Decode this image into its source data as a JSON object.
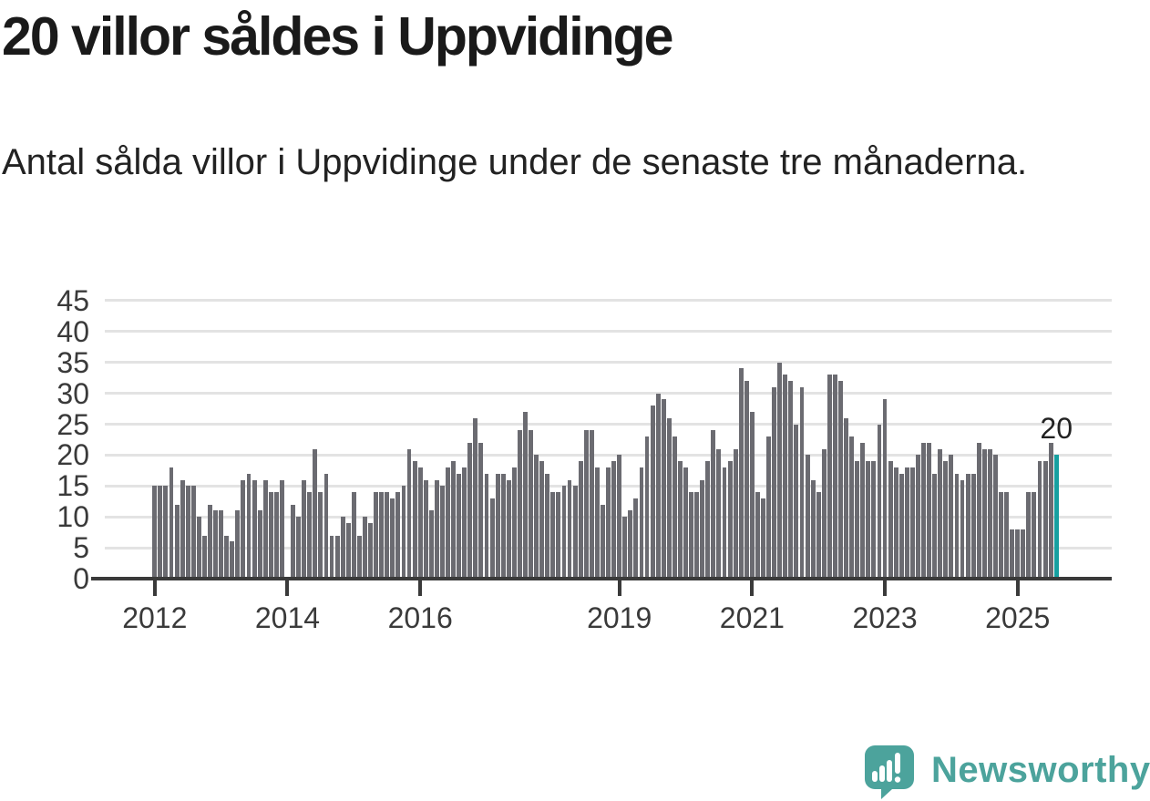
{
  "header": {
    "title": "20 villor såldes i Uppvidinge",
    "subtitle": "Antal sålda villor i Uppvidinge under de senaste tre månaderna."
  },
  "footer": {
    "brand": "Newsworthy",
    "logo_icon": "newsworthy-speech-bubble-chart-icon"
  },
  "colors": {
    "background": "#ffffff",
    "bar": "#6b6b71",
    "highlight": "#16a0a0",
    "gridline": "#e3e3e3",
    "axis": "#3a3a3a",
    "title": "#1a1a1a",
    "subtitle": "#222222",
    "annotation": "#222222",
    "brand": "#4ca39c"
  },
  "chart_data": {
    "type": "bar",
    "title": "20 villor såldes i Uppvidinge",
    "subtitle": "Antal sålda villor i Uppvidinge under de senaste tre månaderna.",
    "frequency": "monthly",
    "start_year": 2012,
    "start_month": 1,
    "ylim": [
      0,
      45
    ],
    "grid": true,
    "y_ticks": [
      0,
      5,
      10,
      15,
      20,
      25,
      30,
      35,
      40,
      45
    ],
    "x_tick_years": [
      "2012",
      "2014",
      "2016",
      "2019",
      "2021",
      "2023",
      "2025"
    ],
    "values": [
      15,
      15,
      15,
      18,
      12,
      16,
      15,
      15,
      10,
      7,
      12,
      11,
      11,
      7,
      6,
      11,
      16,
      17,
      16,
      11,
      16,
      14,
      14,
      16,
      0,
      12,
      10,
      16,
      14,
      21,
      14,
      17,
      7,
      7,
      10,
      9,
      14,
      7,
      10,
      9,
      14,
      14,
      14,
      13,
      14,
      15,
      21,
      19,
      18,
      16,
      11,
      16,
      15,
      18,
      19,
      17,
      18,
      22,
      26,
      22,
      17,
      13,
      17,
      17,
      16,
      18,
      24,
      27,
      24,
      20,
      19,
      17,
      14,
      14,
      15,
      16,
      15,
      19,
      24,
      24,
      18,
      12,
      18,
      19,
      20,
      10,
      11,
      13,
      18,
      23,
      28,
      30,
      29,
      26,
      23,
      19,
      18,
      14,
      14,
      16,
      19,
      24,
      21,
      18,
      19,
      21,
      34,
      32,
      27,
      14,
      13,
      23,
      31,
      35,
      33,
      32,
      25,
      31,
      20,
      16,
      14,
      21,
      33,
      33,
      32,
      26,
      23,
      19,
      22,
      19,
      19,
      25,
      29,
      19,
      18,
      17,
      18,
      18,
      20,
      22,
      22,
      17,
      21,
      19,
      20,
      17,
      16,
      17,
      17,
      22,
      21,
      21,
      20,
      14,
      14,
      8,
      8,
      8,
      14,
      14,
      19,
      19,
      22,
      20
    ],
    "highlight_index": 163,
    "annotation": {
      "text": "20",
      "index": 163
    }
  }
}
